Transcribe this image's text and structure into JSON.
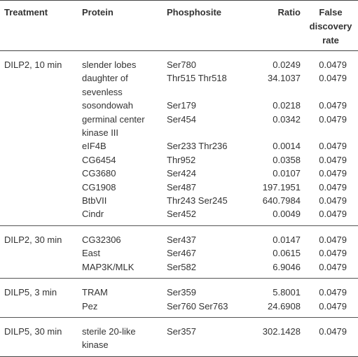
{
  "headers": {
    "treatment": "Treatment",
    "protein": "Protein",
    "phosphosite": "Phosphosite",
    "ratio": "Ratio",
    "fdr_line1": "False",
    "fdr_line2": "discovery",
    "fdr_line3": "rate"
  },
  "groups": [
    {
      "treatment": "DILP2, 10 min",
      "rows": [
        {
          "protein": "slender lobes",
          "protein2": "",
          "site": "Ser780",
          "ratio": "0.0249",
          "fdr": "0.0479"
        },
        {
          "protein": "daughter of",
          "protein2": "sevenless",
          "site": "Thr515 Thr518",
          "ratio": "34.1037",
          "fdr": "0.0479"
        },
        {
          "protein": "sosondowah",
          "protein2": "",
          "site": "Ser179",
          "ratio": "0.0218",
          "fdr": "0.0479"
        },
        {
          "protein": "germinal center",
          "protein2": "kinase III",
          "site": "Ser454",
          "ratio": "0.0342",
          "fdr": "0.0479"
        },
        {
          "protein": "eIF4B",
          "protein2": "",
          "site": "Ser233 Thr236",
          "ratio": "0.0014",
          "fdr": "0.0479"
        },
        {
          "protein": "CG6454",
          "protein2": "",
          "site": "Thr952",
          "ratio": "0.0358",
          "fdr": "0.0479"
        },
        {
          "protein": "CG3680",
          "protein2": "",
          "site": "Ser424",
          "ratio": "0.0107",
          "fdr": "0.0479"
        },
        {
          "protein": "CG1908",
          "protein2": "",
          "site": "Ser487",
          "ratio": "197.1951",
          "fdr": "0.0479"
        },
        {
          "protein": "BtbVII",
          "protein2": "",
          "site": "Thr243 Ser245",
          "ratio": "640.7984",
          "fdr": "0.0479"
        },
        {
          "protein": "Cindr",
          "protein2": "",
          "site": "Ser452",
          "ratio": "0.0049",
          "fdr": "0.0479"
        }
      ]
    },
    {
      "treatment": "DILP2, 30 min",
      "rows": [
        {
          "protein": "CG32306",
          "protein2": "",
          "site": "Ser437",
          "ratio": "0.0147",
          "fdr": "0.0479"
        },
        {
          "protein": "East",
          "protein2": "",
          "site": "Ser467",
          "ratio": "0.0615",
          "fdr": "0.0479"
        },
        {
          "protein": "MAP3K/MLK",
          "protein2": "",
          "site": "Ser582",
          "ratio": "6.9046",
          "fdr": "0.0479"
        }
      ]
    },
    {
      "treatment": "DILP5, 3 min",
      "rows": [
        {
          "protein": "TRAM",
          "protein2": "",
          "site": "Ser359",
          "ratio": "5.8001",
          "fdr": "0.0479"
        },
        {
          "protein": "Pez",
          "protein2": "",
          "site": "Ser760 Ser763",
          "ratio": "24.6908",
          "fdr": "0.0479"
        }
      ]
    },
    {
      "treatment": "DILP5, 30 min",
      "rows": [
        {
          "protein": "sterile 20-like",
          "protein2": "kinase",
          "site": "Ser357",
          "ratio": "302.1428",
          "fdr": "0.0479"
        }
      ]
    }
  ]
}
